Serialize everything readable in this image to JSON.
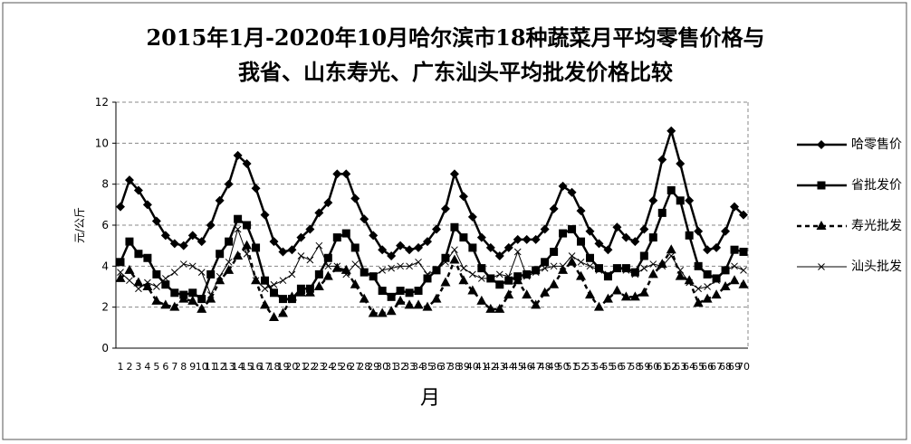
{
  "chart_data": {
    "type": "line",
    "title": [
      "2015年1月-2020年10月哈尔滨市18种蔬菜月平均零售价格与",
      "我省、山东寿光、广东汕头平均批发价格比较"
    ],
    "x_label": "月",
    "y_label": "元/公斤",
    "categories": [
      "1",
      "2",
      "3",
      "4",
      "5",
      "6",
      "7",
      "8",
      "9",
      "10",
      "11",
      "12",
      "13",
      "14",
      "15",
      "16",
      "17",
      "18",
      "19",
      "20",
      "21",
      "22",
      "23",
      "24",
      "25",
      "26",
      "27",
      "28",
      "29",
      "30",
      "31",
      "32",
      "33",
      "34",
      "35",
      "36",
      "37",
      "38",
      "39",
      "40",
      "41",
      "42",
      "43",
      "44",
      "45",
      "46",
      "47",
      "48",
      "49",
      "50",
      "51",
      "52",
      "53",
      "54",
      "55",
      "56",
      "57",
      "58",
      "59",
      "60",
      "61",
      "62",
      "63",
      "64",
      "65",
      "66",
      "67",
      "68",
      "69",
      "70"
    ],
    "ylim": [
      0,
      12
    ],
    "yticks": [
      0,
      2,
      4,
      6,
      8,
      10,
      12
    ],
    "grid": true,
    "legend": "right",
    "series": [
      {
        "name": "哈零售价",
        "color": "#000000",
        "marker": "diamond",
        "line_style": "solid",
        "values": [
          6.9,
          8.2,
          7.7,
          7.0,
          6.2,
          5.5,
          5.1,
          5.0,
          5.5,
          5.2,
          6.0,
          7.2,
          8.0,
          9.4,
          9.0,
          7.8,
          6.5,
          5.2,
          4.7,
          4.8,
          5.4,
          5.8,
          6.6,
          7.1,
          8.5,
          8.5,
          7.3,
          6.3,
          5.5,
          4.8,
          4.5,
          5.0,
          4.8,
          4.9,
          5.2,
          5.8,
          6.8,
          8.5,
          7.4,
          6.4,
          5.4,
          4.9,
          4.5,
          4.9,
          5.3,
          5.3,
          5.3,
          5.8,
          6.8,
          7.9,
          7.6,
          6.7,
          5.7,
          5.1,
          4.8,
          5.9,
          5.4,
          5.2,
          5.8,
          7.2,
          9.2,
          10.6,
          9.0,
          7.2,
          5.7,
          4.8,
          4.9,
          5.7,
          6.9,
          6.5
        ]
      },
      {
        "name": "省批发价",
        "color": "#000000",
        "marker": "square",
        "line_style": "solid",
        "values": [
          4.2,
          5.2,
          4.6,
          4.4,
          3.6,
          3.1,
          2.7,
          2.6,
          2.7,
          2.4,
          3.6,
          4.6,
          5.2,
          6.3,
          6.0,
          4.9,
          3.3,
          2.7,
          2.4,
          2.4,
          2.9,
          2.9,
          3.6,
          4.4,
          5.4,
          5.6,
          4.9,
          3.7,
          3.5,
          2.8,
          2.5,
          2.8,
          2.7,
          2.8,
          3.4,
          3.8,
          4.4,
          5.9,
          5.4,
          4.9,
          3.9,
          3.4,
          3.1,
          3.3,
          3.5,
          3.6,
          3.8,
          4.2,
          4.7,
          5.6,
          5.8,
          5.2,
          4.4,
          3.9,
          3.5,
          3.9,
          3.9,
          3.7,
          4.5,
          5.4,
          6.6,
          7.7,
          7.2,
          5.5,
          4.0,
          3.6,
          3.4,
          3.8,
          4.8,
          4.7
        ]
      },
      {
        "name": "寿光批发",
        "color": "#000000",
        "marker": "triangle",
        "line_style": "dashed",
        "values": [
          3.4,
          3.8,
          3.2,
          3.0,
          2.3,
          2.1,
          2.0,
          2.4,
          2.3,
          1.9,
          2.4,
          3.3,
          3.8,
          4.5,
          5.0,
          3.3,
          2.1,
          1.5,
          1.7,
          2.5,
          2.7,
          2.7,
          3.0,
          3.5,
          3.9,
          3.8,
          3.1,
          2.4,
          1.7,
          1.7,
          1.8,
          2.3,
          2.1,
          2.1,
          2.0,
          2.4,
          3.2,
          4.3,
          3.3,
          2.8,
          2.3,
          1.9,
          1.9,
          2.6,
          3.3,
          2.6,
          2.1,
          2.7,
          3.1,
          3.8,
          4.2,
          3.5,
          2.6,
          2.0,
          2.4,
          2.8,
          2.5,
          2.5,
          2.7,
          3.6,
          4.1,
          4.8,
          3.5,
          3.3,
          2.2,
          2.4,
          2.6,
          3.0,
          3.3,
          3.1
        ]
      },
      {
        "name": "汕头批发",
        "color": "#000000",
        "marker": "cross",
        "line_style": "thin",
        "values": [
          3.7,
          3.3,
          2.9,
          3.2,
          3.0,
          3.4,
          3.7,
          4.1,
          4.0,
          3.7,
          2.6,
          3.5,
          4.2,
          5.8,
          4.6,
          3.3,
          2.9,
          3.1,
          3.3,
          3.6,
          4.5,
          4.3,
          5.0,
          4.0,
          4.0,
          3.6,
          4.1,
          3.7,
          3.5,
          3.8,
          3.9,
          4.0,
          4.0,
          4.2,
          3.6,
          3.8,
          4.2,
          4.8,
          3.9,
          3.6,
          3.4,
          3.4,
          3.6,
          3.5,
          4.7,
          3.5,
          3.7,
          3.9,
          4.0,
          4.0,
          4.5,
          4.2,
          4.0,
          3.8,
          3.6,
          3.9,
          3.8,
          3.6,
          3.9,
          4.1,
          4.0,
          4.5,
          3.8,
          3.2,
          2.9,
          3.0,
          3.3,
          3.8,
          4.0,
          3.8
        ]
      }
    ]
  }
}
